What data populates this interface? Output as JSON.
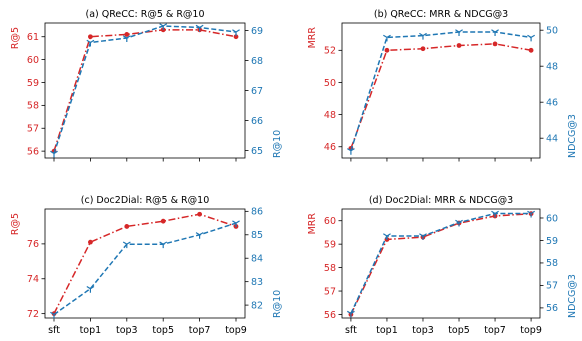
{
  "colors": {
    "left": "#d62728",
    "right": "#1f77b4",
    "axis": "#000000"
  },
  "chart_data": [
    {
      "type": "line",
      "title": "(a) QReCC: R@5 & R@10",
      "categories": [
        "sft",
        "top1",
        "top3",
        "top5",
        "top7",
        "top9"
      ],
      "show_xticks": false,
      "left_axis": {
        "label": "R@5",
        "ylim": [
          55.7,
          61.6
        ],
        "ticks": [
          56,
          57,
          58,
          59,
          60,
          61
        ]
      },
      "right_axis": {
        "label": "R@10",
        "ylim": [
          64.75,
          69.25
        ],
        "ticks": [
          65,
          66,
          67,
          68,
          69
        ]
      },
      "series": [
        {
          "axis": "left",
          "style": "dashdot",
          "marker": "dot",
          "values": [
            56.0,
            61.0,
            61.1,
            61.3,
            61.3,
            61.0
          ]
        },
        {
          "axis": "right",
          "style": "dashed",
          "marker": "tri",
          "values": [
            64.9,
            68.6,
            68.75,
            69.15,
            69.1,
            68.95
          ]
        }
      ]
    },
    {
      "type": "line",
      "title": "(b) QReCC: MRR & NDCG@3",
      "categories": [
        "sft",
        "top1",
        "top3",
        "top5",
        "top7",
        "top9"
      ],
      "show_xticks": false,
      "left_axis": {
        "label": "MRR",
        "ylim": [
          45.3,
          53.7
        ],
        "ticks": [
          46,
          48,
          50,
          52
        ]
      },
      "right_axis": {
        "label": "NDCG@3",
        "ylim": [
          42.9,
          50.4
        ],
        "ticks": [
          44,
          46,
          48,
          50
        ]
      },
      "series": [
        {
          "axis": "left",
          "style": "dashdot",
          "marker": "dot",
          "values": [
            45.9,
            52.0,
            52.1,
            52.3,
            52.4,
            52.0
          ]
        },
        {
          "axis": "right",
          "style": "dashed",
          "marker": "tri",
          "values": [
            43.3,
            49.6,
            49.7,
            49.9,
            49.9,
            49.6
          ]
        }
      ]
    },
    {
      "type": "line",
      "title": "(c) Doc2Dial: R@5 & R@10",
      "categories": [
        "sft",
        "top1",
        "top3",
        "top5",
        "top7",
        "top9"
      ],
      "show_xticks": true,
      "left_axis": {
        "label": "R@5",
        "ylim": [
          71.75,
          78.0
        ],
        "ticks": [
          72,
          74,
          76
        ]
      },
      "right_axis": {
        "label": "R@10",
        "ylim": [
          81.45,
          86.1
        ],
        "ticks": [
          82,
          83,
          84,
          85,
          86
        ]
      },
      "series": [
        {
          "axis": "left",
          "style": "dashdot",
          "marker": "dot",
          "values": [
            72.0,
            76.1,
            77.0,
            77.3,
            77.7,
            77.0
          ]
        },
        {
          "axis": "right",
          "style": "dashed",
          "marker": "tri",
          "values": [
            81.6,
            82.7,
            84.6,
            84.6,
            85.0,
            85.5
          ]
        }
      ]
    },
    {
      "type": "line",
      "title": "(d) Doc2Dial: MRR & NDCG@3",
      "categories": [
        "sft",
        "top1",
        "top3",
        "top5",
        "top7",
        "top9"
      ],
      "show_xticks": true,
      "left_axis": {
        "label": "MRR",
        "ylim": [
          55.85,
          60.5
        ],
        "ticks": [
          56,
          57,
          58,
          59,
          60
        ]
      },
      "right_axis": {
        "label": "NDCG@3",
        "ylim": [
          55.55,
          60.4
        ],
        "ticks": [
          56,
          57,
          58,
          59,
          60
        ]
      },
      "series": [
        {
          "axis": "left",
          "style": "dashdot",
          "marker": "dot",
          "values": [
            56.0,
            59.2,
            59.3,
            59.9,
            60.2,
            60.3
          ]
        },
        {
          "axis": "right",
          "style": "dashed",
          "marker": "tri",
          "values": [
            55.75,
            59.2,
            59.2,
            59.8,
            60.2,
            60.2
          ]
        }
      ]
    }
  ]
}
